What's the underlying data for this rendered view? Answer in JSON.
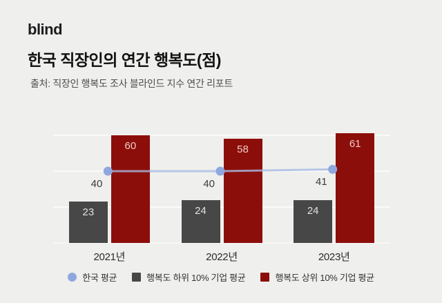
{
  "header": {
    "logo": "blind",
    "title": "한국 직장인의 연간 행복도(점)",
    "source": "출처: 직장인 행복도 조사 블라인드 지수 연간 리포트"
  },
  "chart_data": {
    "type": "bar",
    "title": "한국 직장인의 연간 행복도(점)",
    "categories": [
      "2021년",
      "2022년",
      "2023년"
    ],
    "series": [
      {
        "name": "한국 평균",
        "kind": "line",
        "color": "#8FA7DF",
        "line_color": "#A6BAE2",
        "label_color": "#3A3A3A",
        "values": [
          40,
          40,
          41
        ]
      },
      {
        "name": "행복도 하위 10% 기업 평균",
        "kind": "bar",
        "color": "#474747",
        "label_color": "#E2E2E2",
        "values": [
          23,
          24,
          24
        ]
      },
      {
        "name": "행복도 상위 10% 기업 평균",
        "kind": "bar",
        "color": "#8C0E0A",
        "label_color": "#F0CBC7",
        "values": [
          60,
          58,
          61
        ]
      }
    ],
    "ylim": [
      0,
      60
    ],
    "gridline_values": [
      0,
      20,
      40,
      60
    ],
    "grid": true,
    "legend_position": "bottom",
    "colors": {
      "background": "#EFEFED",
      "gridline": "#FAFAF8",
      "korea_avg_dot": "#8FA7DF",
      "korea_avg_line": "#A6BAE2",
      "bottom10_bar": "#474747",
      "top10_bar": "#8C0E0A"
    }
  }
}
